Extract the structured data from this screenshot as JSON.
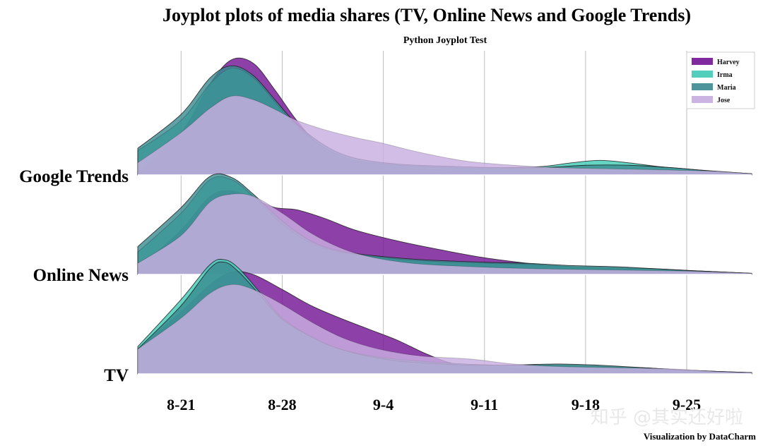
{
  "chart_data": {
    "type": "area",
    "title": "Joyplot plots of media shares (TV, Online News and Google Trends)",
    "subtitle": "Python Joyplot Test",
    "credit": "Visualization by DataCharm",
    "watermark": "知乎 @其实还好啦",
    "x_ticks": [
      "8-21",
      "8-28",
      "9-4",
      "9-11",
      "9-18",
      "9-25"
    ],
    "x_tick_days": [
      0,
      7,
      14,
      21,
      28,
      35
    ],
    "xlim": [
      -3,
      39.5
    ],
    "grid": "vertical",
    "legend_position": "top-right",
    "rows": [
      "Google Trends",
      "Online News",
      "TV"
    ],
    "series": [
      {
        "name": "Harvey",
        "color": "#7a1f9a",
        "opacity": 0.85
      },
      {
        "name": "Irma",
        "color": "#3fcab5",
        "opacity": 0.8
      },
      {
        "name": "Maria",
        "color": "#3a8a8f",
        "opacity": 0.8
      },
      {
        "name": "Jose",
        "color": "#c8aee0",
        "opacity": 0.82
      }
    ],
    "densities": {
      "Google Trends": {
        "Harvey": [
          [
            -3,
            0.02
          ],
          [
            0,
            0.35
          ],
          [
            2,
            0.75
          ],
          [
            3.5,
            0.95
          ],
          [
            5,
            0.92
          ],
          [
            6.5,
            0.7
          ],
          [
            8,
            0.45
          ],
          [
            9.5,
            0.25
          ],
          [
            11,
            0.14
          ],
          [
            13,
            0.09
          ],
          [
            15,
            0.06
          ],
          [
            18,
            0.04
          ],
          [
            21,
            0.03
          ],
          [
            25,
            0.03
          ],
          [
            28,
            0.03
          ],
          [
            32,
            0.03
          ],
          [
            35,
            0.02
          ],
          [
            39.5,
            0.01
          ]
        ],
        "Irma": [
          [
            -3,
            0.2
          ],
          [
            0,
            0.45
          ],
          [
            2,
            0.75
          ],
          [
            3.5,
            0.88
          ],
          [
            5,
            0.8
          ],
          [
            6.5,
            0.6
          ],
          [
            8,
            0.4
          ],
          [
            10,
            0.22
          ],
          [
            12,
            0.12
          ],
          [
            15,
            0.08
          ],
          [
            19,
            0.06
          ],
          [
            22,
            0.06
          ],
          [
            25,
            0.07
          ],
          [
            27,
            0.1
          ],
          [
            29,
            0.12
          ],
          [
            31,
            0.1
          ],
          [
            33,
            0.07
          ],
          [
            35,
            0.05
          ],
          [
            37,
            0.03
          ],
          [
            39.5,
            0.01
          ]
        ],
        "Maria": [
          [
            -3,
            0.22
          ],
          [
            0,
            0.5
          ],
          [
            2,
            0.8
          ],
          [
            3.5,
            0.9
          ],
          [
            5,
            0.82
          ],
          [
            6.5,
            0.62
          ],
          [
            8,
            0.42
          ],
          [
            10,
            0.24
          ],
          [
            12,
            0.14
          ],
          [
            15,
            0.09
          ],
          [
            19,
            0.07
          ],
          [
            22,
            0.06
          ],
          [
            25,
            0.06
          ],
          [
            28,
            0.08
          ],
          [
            31,
            0.08
          ],
          [
            34,
            0.06
          ],
          [
            36,
            0.04
          ],
          [
            39.5,
            0.01
          ]
        ],
        "Jose": [
          [
            -3,
            0.1
          ],
          [
            0,
            0.35
          ],
          [
            2,
            0.55
          ],
          [
            3.5,
            0.65
          ],
          [
            5,
            0.62
          ],
          [
            6.5,
            0.54
          ],
          [
            8,
            0.45
          ],
          [
            10,
            0.37
          ],
          [
            12,
            0.31
          ],
          [
            14,
            0.26
          ],
          [
            16,
            0.2
          ],
          [
            18,
            0.15
          ],
          [
            20,
            0.11
          ],
          [
            23,
            0.08
          ],
          [
            26,
            0.06
          ],
          [
            30,
            0.05
          ],
          [
            34,
            0.04
          ],
          [
            37,
            0.03
          ],
          [
            39.5,
            0.01
          ]
        ]
      },
      "Online News": {
        "Harvey": [
          [
            -3,
            0.05
          ],
          [
            0,
            0.4
          ],
          [
            2,
            0.7
          ],
          [
            3.5,
            0.75
          ],
          [
            5,
            0.68
          ],
          [
            6.5,
            0.6
          ],
          [
            8,
            0.58
          ],
          [
            10,
            0.5
          ],
          [
            12,
            0.4
          ],
          [
            15,
            0.3
          ],
          [
            18,
            0.22
          ],
          [
            21,
            0.15
          ],
          [
            24,
            0.1
          ],
          [
            27,
            0.06
          ],
          [
            30,
            0.05
          ],
          [
            33,
            0.04
          ],
          [
            36,
            0.03
          ],
          [
            39.5,
            0.01
          ]
        ],
        "Irma": [
          [
            -3,
            0.2
          ],
          [
            0,
            0.55
          ],
          [
            2,
            0.85
          ],
          [
            3.5,
            0.85
          ],
          [
            5,
            0.7
          ],
          [
            7,
            0.45
          ],
          [
            9,
            0.28
          ],
          [
            11,
            0.2
          ],
          [
            14,
            0.15
          ],
          [
            17,
            0.12
          ],
          [
            21,
            0.1
          ],
          [
            24,
            0.09
          ],
          [
            27,
            0.07
          ],
          [
            30,
            0.06
          ],
          [
            33,
            0.05
          ],
          [
            36,
            0.03
          ],
          [
            39.5,
            0.01
          ]
        ],
        "Maria": [
          [
            -3,
            0.25
          ],
          [
            0,
            0.6
          ],
          [
            2,
            0.88
          ],
          [
            3.5,
            0.87
          ],
          [
            5,
            0.72
          ],
          [
            7,
            0.48
          ],
          [
            9,
            0.3
          ],
          [
            11,
            0.21
          ],
          [
            14,
            0.16
          ],
          [
            17,
            0.13
          ],
          [
            21,
            0.11
          ],
          [
            24,
            0.1
          ],
          [
            27,
            0.08
          ],
          [
            30,
            0.07
          ],
          [
            33,
            0.05
          ],
          [
            36,
            0.03
          ],
          [
            39.5,
            0.01
          ]
        ],
        "Jose": [
          [
            -3,
            0.1
          ],
          [
            0,
            0.35
          ],
          [
            2,
            0.65
          ],
          [
            3.5,
            0.72
          ],
          [
            5,
            0.7
          ],
          [
            7,
            0.55
          ],
          [
            9,
            0.37
          ],
          [
            11,
            0.24
          ],
          [
            13,
            0.16
          ],
          [
            16,
            0.1
          ],
          [
            20,
            0.07
          ],
          [
            25,
            0.05
          ],
          [
            30,
            0.04
          ],
          [
            35,
            0.03
          ],
          [
            39.5,
            0.01
          ]
        ]
      },
      "TV": {
        "Harvey": [
          [
            -3,
            0.2
          ],
          [
            0,
            0.5
          ],
          [
            2,
            0.72
          ],
          [
            3.5,
            0.82
          ],
          [
            5,
            0.8
          ],
          [
            7,
            0.68
          ],
          [
            9,
            0.55
          ],
          [
            11,
            0.45
          ],
          [
            13,
            0.36
          ],
          [
            15,
            0.27
          ],
          [
            17,
            0.16
          ],
          [
            19,
            0.08
          ],
          [
            22,
            0.05
          ],
          [
            25,
            0.04
          ],
          [
            28,
            0.03
          ],
          [
            32,
            0.03
          ],
          [
            36,
            0.02
          ],
          [
            39.5,
            0.01
          ]
        ],
        "Irma": [
          [
            -3,
            0.22
          ],
          [
            0,
            0.6
          ],
          [
            2,
            0.88
          ],
          [
            3,
            0.92
          ],
          [
            4,
            0.85
          ],
          [
            5.5,
            0.65
          ],
          [
            7,
            0.45
          ],
          [
            9,
            0.3
          ],
          [
            11,
            0.2
          ],
          [
            14,
            0.13
          ],
          [
            18,
            0.09
          ],
          [
            22,
            0.07
          ],
          [
            26,
            0.07
          ],
          [
            29,
            0.06
          ],
          [
            32,
            0.05
          ],
          [
            35,
            0.03
          ],
          [
            39.5,
            0.01
          ]
        ],
        "Maria": [
          [
            -3,
            0.2
          ],
          [
            0,
            0.55
          ],
          [
            2,
            0.85
          ],
          [
            3,
            0.9
          ],
          [
            4,
            0.82
          ],
          [
            5.5,
            0.63
          ],
          [
            7,
            0.44
          ],
          [
            9,
            0.3
          ],
          [
            11,
            0.2
          ],
          [
            14,
            0.12
          ],
          [
            18,
            0.08
          ],
          [
            22,
            0.07
          ],
          [
            26,
            0.08
          ],
          [
            29,
            0.07
          ],
          [
            32,
            0.05
          ],
          [
            35,
            0.03
          ],
          [
            39.5,
            0.01
          ]
        ],
        "Jose": [
          [
            -3,
            0.2
          ],
          [
            0,
            0.45
          ],
          [
            2,
            0.65
          ],
          [
            3.5,
            0.72
          ],
          [
            5,
            0.68
          ],
          [
            7,
            0.56
          ],
          [
            9,
            0.42
          ],
          [
            11,
            0.3
          ],
          [
            13,
            0.22
          ],
          [
            15,
            0.17
          ],
          [
            17,
            0.14
          ],
          [
            20,
            0.12
          ],
          [
            23,
            0.08
          ],
          [
            26,
            0.06
          ],
          [
            30,
            0.05
          ],
          [
            34,
            0.04
          ],
          [
            37,
            0.02
          ],
          [
            39.5,
            0.01
          ]
        ]
      }
    }
  }
}
